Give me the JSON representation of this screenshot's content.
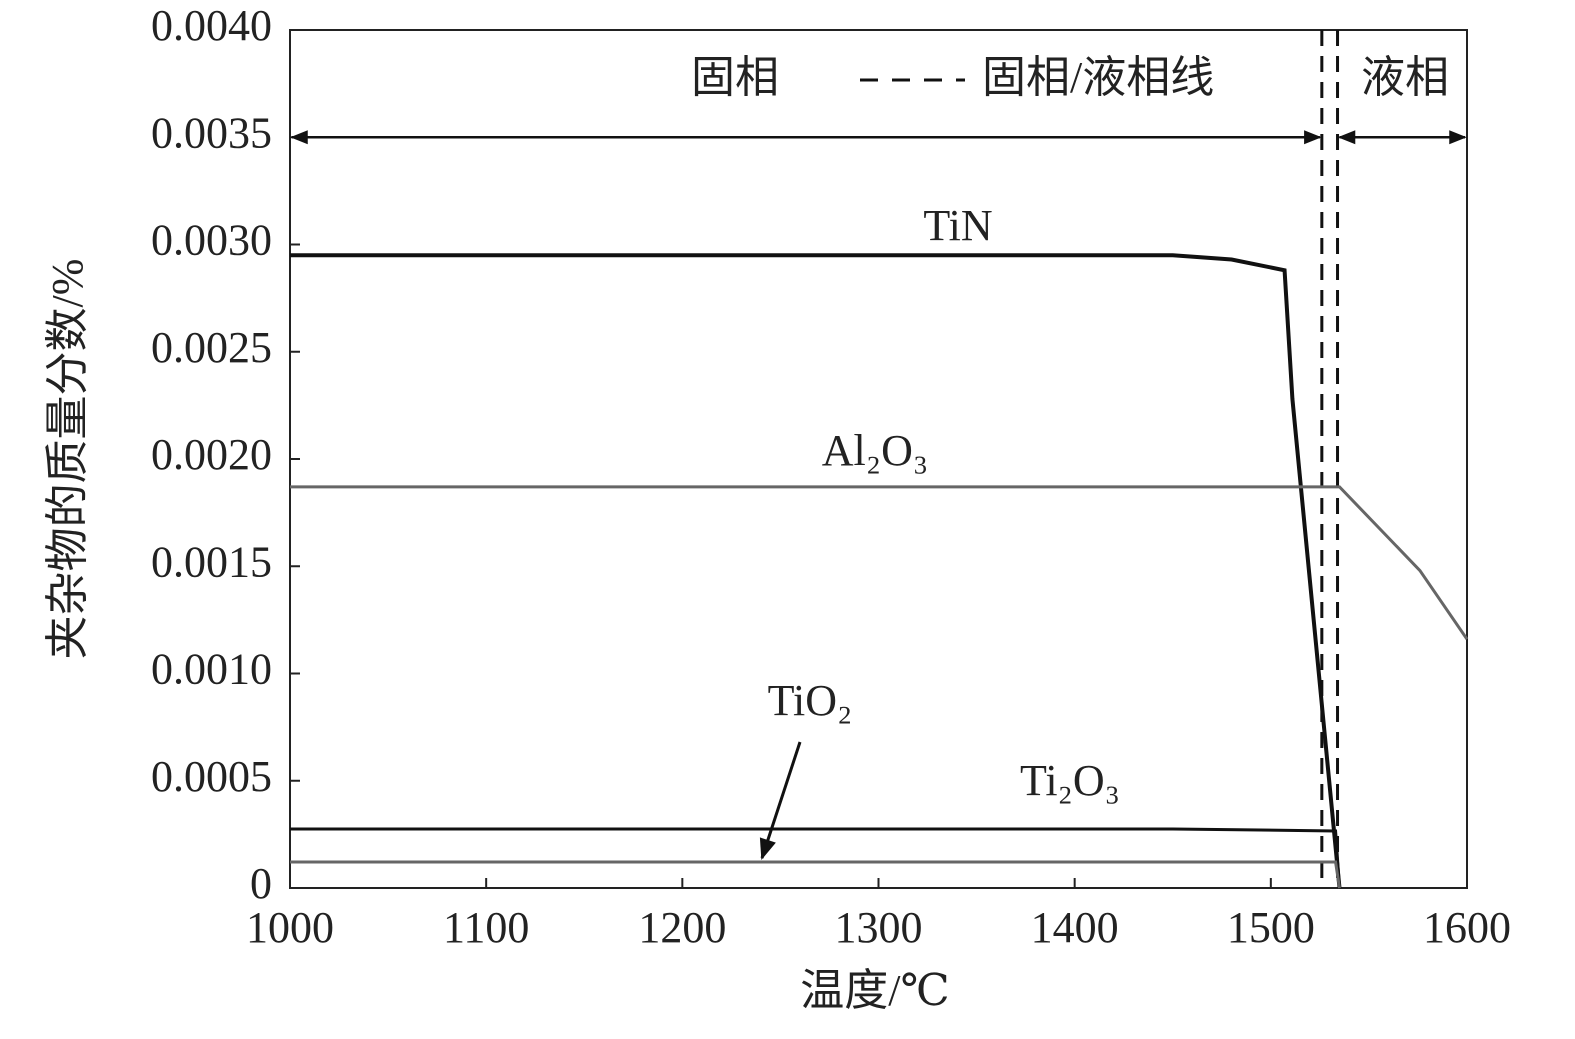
{
  "chart_data": {
    "type": "line",
    "xlabel": "温度/℃",
    "ylabel": "夹杂物的质量分数/%",
    "xlim": [
      1000,
      1600
    ],
    "xticks": [
      1000,
      1100,
      1200,
      1300,
      1400,
      1500,
      1600
    ],
    "ylim": [
      0,
      0.004
    ],
    "yticks": [
      0,
      {
        "value": 0.0005,
        "label": "0.0005"
      },
      {
        "value": 0.001,
        "label": "0.0010"
      },
      {
        "value": 0.0015,
        "label": "0.0015"
      },
      {
        "value": 0.002,
        "label": "0.0020"
      },
      {
        "value": 0.0025,
        "label": "0.0025"
      },
      {
        "value": 0.003,
        "label": "0.0030"
      },
      {
        "value": 0.0035,
        "label": "0.0035"
      },
      {
        "value": 0.004,
        "label": "0.0040"
      }
    ],
    "series": [
      {
        "name": "TiN",
        "color": "#111111",
        "x": [
          1000,
          1450,
          1480,
          1507,
          1511,
          1535
        ],
        "values": [
          0.00295,
          0.00295,
          0.00293,
          0.00288,
          0.00228,
          0
        ]
      },
      {
        "name": "Al₂O₃",
        "color": "#666666",
        "x": [
          1000,
          1535,
          1576,
          1600
        ],
        "values": [
          0.00187,
          0.00187,
          0.00148,
          0.00116
        ]
      },
      {
        "name": "Ti₂O₃",
        "color": "#111111",
        "x": [
          1000,
          1450,
          1533,
          1535
        ],
        "values": [
          0.000275,
          0.000275,
          0.000266,
          0
        ]
      },
      {
        "name": "TiO₂",
        "color": "#666666",
        "x": [
          1000,
          1533,
          1535
        ],
        "values": [
          0.000121,
          0.000121,
          0
        ]
      }
    ],
    "phase_lines_x": [
      1526,
      1534
    ],
    "phase_arrow_y": 0.0035,
    "annotations": {
      "solid": "固相",
      "boundary": "固相/液相线",
      "liquid": "液相"
    }
  }
}
